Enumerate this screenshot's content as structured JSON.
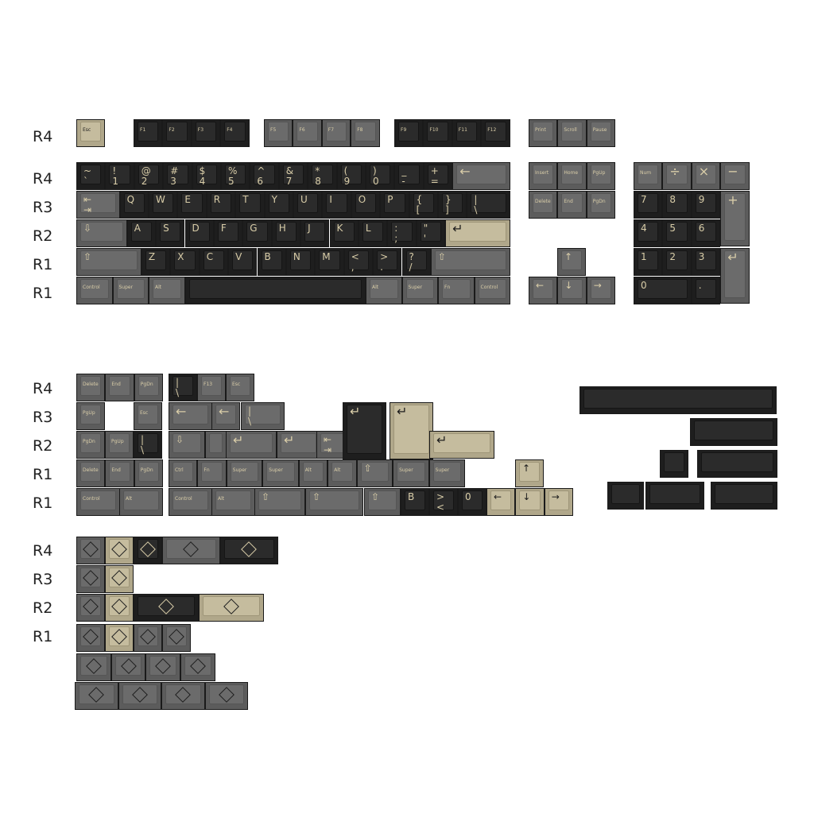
{
  "row_labels": {
    "top": [
      "R4",
      "R4",
      "R3",
      "R2",
      "R1",
      "R1"
    ],
    "mid": [
      "R4",
      "R3",
      "R2",
      "R1",
      "R1"
    ],
    "bottom": [
      "R4",
      "R3",
      "R2",
      "R1"
    ]
  },
  "fn_row": [
    "Esc",
    "F1",
    "F2",
    "F3",
    "F4",
    "F5",
    "F6",
    "F7",
    "F8",
    "F9",
    "F10",
    "F11",
    "F12",
    "Print",
    "Scroll",
    "Pause"
  ],
  "number_row": [
    "~\n`",
    "!\n1",
    "@\n2",
    "#\n3",
    "$\n4",
    "%\n5",
    "^\n6",
    "&\n7",
    "*\n8",
    "(\n9",
    ")\n0",
    "_\n-",
    "+\n=",
    "←"
  ],
  "q_row": [
    "⇤\n⇥",
    "Q",
    "W",
    "E",
    "R",
    "T",
    "Y",
    "U",
    "I",
    "O",
    "P",
    "{\n[",
    "}\n]",
    "|\n\\"
  ],
  "a_row": [
    "⇩",
    "A",
    "S",
    "D",
    "F",
    "G",
    "H",
    "J",
    "K",
    "L",
    ":\n;",
    "\"\n'",
    "↵"
  ],
  "z_row": [
    "⇧",
    "Z",
    "X",
    "C",
    "V",
    "B",
    "N",
    "M",
    "<\n,",
    ">\n.",
    "?\n/",
    "⇧"
  ],
  "bottom_row": [
    "Control",
    "Super",
    "Alt",
    "",
    "Alt",
    "Super",
    "Fn",
    "Control"
  ],
  "nav": [
    "Insert",
    "Home",
    "PgUp",
    "Delete",
    "End",
    "PgDn"
  ],
  "arrows": [
    "↑",
    "←",
    "↓",
    "→"
  ],
  "numpad": {
    "r1": [
      "Num",
      "÷",
      "×",
      "−"
    ],
    "r2": [
      "7",
      "8",
      "9",
      "+"
    ],
    "r3": [
      "4",
      "5",
      "6"
    ],
    "r4": [
      "1",
      "2",
      "3",
      "↵"
    ],
    "r5": [
      "0",
      "."
    ]
  },
  "extras": {
    "r4": [
      "Delete",
      "End",
      "PgDn",
      "|\n\\",
      "F13",
      "Esc"
    ],
    "r3": [
      "PgUp",
      "Esc",
      "←",
      "←",
      "|\n\\"
    ],
    "r2": [
      "PgDn",
      "PgUp",
      "|\n\\",
      "⇩",
      "",
      "↵",
      "↵",
      "⇤\n⇥"
    ],
    "r1a": [
      "Delete",
      "End",
      "PgDn",
      "Ctrl",
      "Fn",
      "Super",
      "Super",
      "Alt",
      "Alt",
      "⇧",
      "Super",
      "Super"
    ],
    "r1b": [
      "Control",
      "Alt",
      "Control",
      "Alt",
      "⇧",
      "⇧",
      "⇧",
      "B",
      ">\n<",
      "0",
      "←",
      "↓",
      "→"
    ],
    "up": "↑",
    "enter_keys": [
      "↵",
      "↵",
      "↵"
    ]
  }
}
